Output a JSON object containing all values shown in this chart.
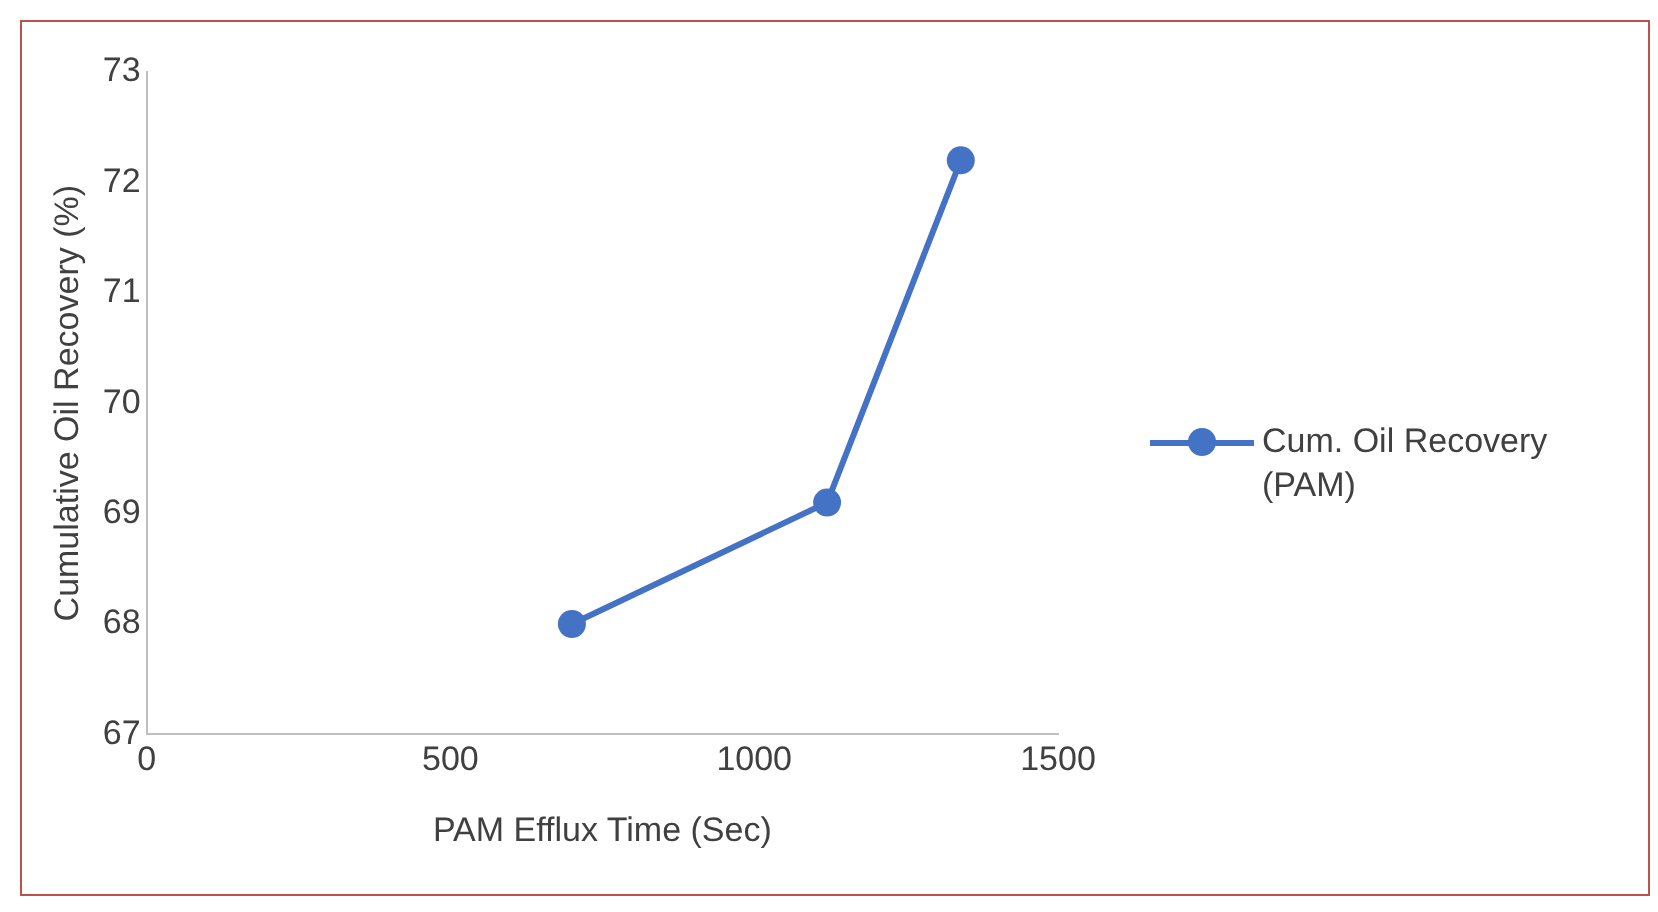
{
  "chart_data": {
    "type": "line",
    "xlabel": "PAM Efflux Time (Sec)",
    "ylabel": "Cumulative Oil Recovery (%)",
    "x": [
      700,
      1120,
      1340
    ],
    "series": [
      {
        "name": "Cum. Oil Recovery (PAM)",
        "color": "#4472c4",
        "values": [
          68.0,
          69.1,
          72.2
        ]
      }
    ],
    "xlim": [
      0,
      1500
    ],
    "xticks": [
      0,
      500,
      1000,
      1500
    ],
    "ylim": [
      67,
      73
    ],
    "yticks": [
      67,
      68,
      69,
      70,
      71,
      72,
      73
    ],
    "grid": false,
    "legend": "right",
    "marker": "circle",
    "line_style": "solid"
  }
}
